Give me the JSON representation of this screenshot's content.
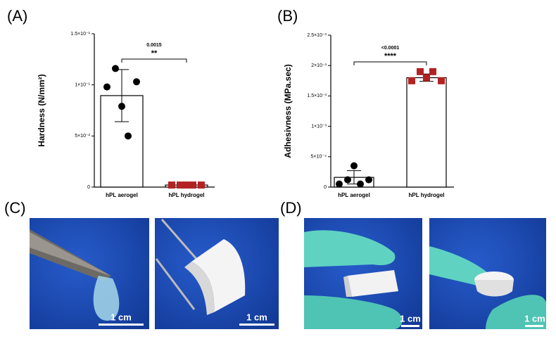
{
  "panels": [
    "(A)",
    "(B)",
    "(C)",
    "(D)"
  ],
  "scale_bars": [
    "1 cm",
    "1 cm",
    "1 cm",
    "1 cm"
  ],
  "chart_data": [
    {
      "type": "bar",
      "ylabel": "Hardness (N/mm²)",
      "categories": [
        "hPL aerogel",
        "hPL hydrogel"
      ],
      "values": [
        0.0895,
        0.002
      ],
      "errors": [
        0.0255,
        0.0005
      ],
      "points": [
        [
          0.098,
          0.116,
          0.079,
          0.05,
          0.103
        ],
        [
          0.002,
          0.002,
          0.002,
          0.002,
          0.002
        ]
      ],
      "point_colors": [
        "#000000",
        "#b22222"
      ],
      "point_shapes": [
        "circle",
        "square"
      ],
      "bar_color": "#ffffff",
      "ylim": [
        0,
        0.15
      ],
      "yticks": [
        0,
        {
          "value": 0.05,
          "label": "5×10⁻²"
        },
        {
          "value": 0.1,
          "label": "1×10⁻¹"
        },
        {
          "value": 0.15,
          "label": "1.5×10⁻¹"
        }
      ],
      "annotation": {
        "p": "0.0015",
        "stars": "**"
      }
    },
    {
      "type": "bar",
      "ylabel": "Adhesivness (MPa.sec)",
      "categories": [
        "hPL aerogel",
        "hPL hydrogel"
      ],
      "values": [
        0.00016,
        0.0018
      ],
      "errors": [
        0.00011,
        6e-05
      ],
      "points": [
        [
          5e-05,
          0.00012,
          0.00035,
          5e-05,
          0.00012
        ],
        [
          0.00175,
          0.0019,
          0.0018,
          0.0019,
          0.00175
        ]
      ],
      "point_colors": [
        "#000000",
        "#b22222"
      ],
      "point_shapes": [
        "circle",
        "square"
      ],
      "bar_color": "#ffffff",
      "ylim": [
        0,
        0.0025
      ],
      "yticks": [
        0,
        {
          "value": 0.0005,
          "label": "5×10⁻⁴"
        },
        {
          "value": 0.001,
          "label": "1×10⁻³"
        },
        {
          "value": 0.0015,
          "label": "1.5×10⁻³"
        },
        {
          "value": 0.002,
          "label": "2×10⁻³"
        },
        {
          "value": 0.0025,
          "label": "2.5×10⁻³"
        }
      ],
      "annotation": {
        "p": "<0.0001",
        "stars": "****"
      }
    }
  ]
}
